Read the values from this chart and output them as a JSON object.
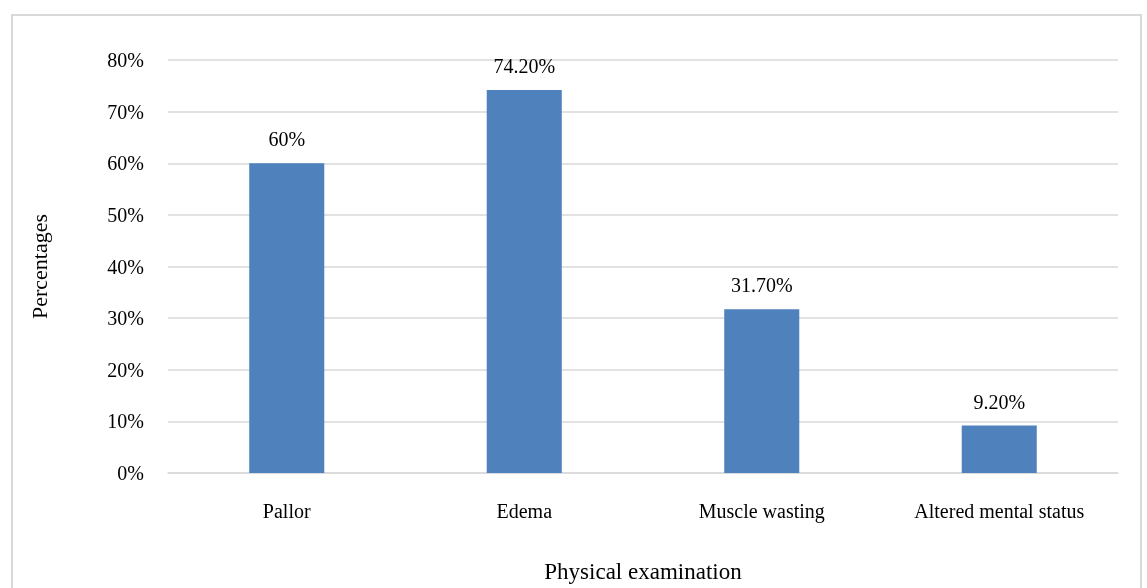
{
  "chart_data": {
    "type": "bar",
    "xlabel": "Physical examination",
    "ylabel": "Percentages",
    "categories": [
      "Pallor",
      "Edema",
      "Muscle wasting",
      "Altered mental status"
    ],
    "values": [
      60,
      74.2,
      31.7,
      9.2
    ],
    "color": "#4f81bd",
    "value_labels": [
      "60%",
      "74.20%",
      "31.70%",
      "9.20%"
    ],
    "ylim": [
      0,
      80
    ],
    "yticks": [
      {
        "value": 0,
        "label": "0%"
      },
      {
        "value": 10,
        "label": "10%"
      },
      {
        "value": 20,
        "label": "20%"
      },
      {
        "value": 30,
        "label": "30%"
      },
      {
        "value": 40,
        "label": "40%"
      },
      {
        "value": 50,
        "label": "50%"
      },
      {
        "value": 60,
        "label": "60%"
      },
      {
        "value": 70,
        "label": "70%"
      },
      {
        "value": 80,
        "label": "80%"
      }
    ],
    "grid": "y"
  }
}
